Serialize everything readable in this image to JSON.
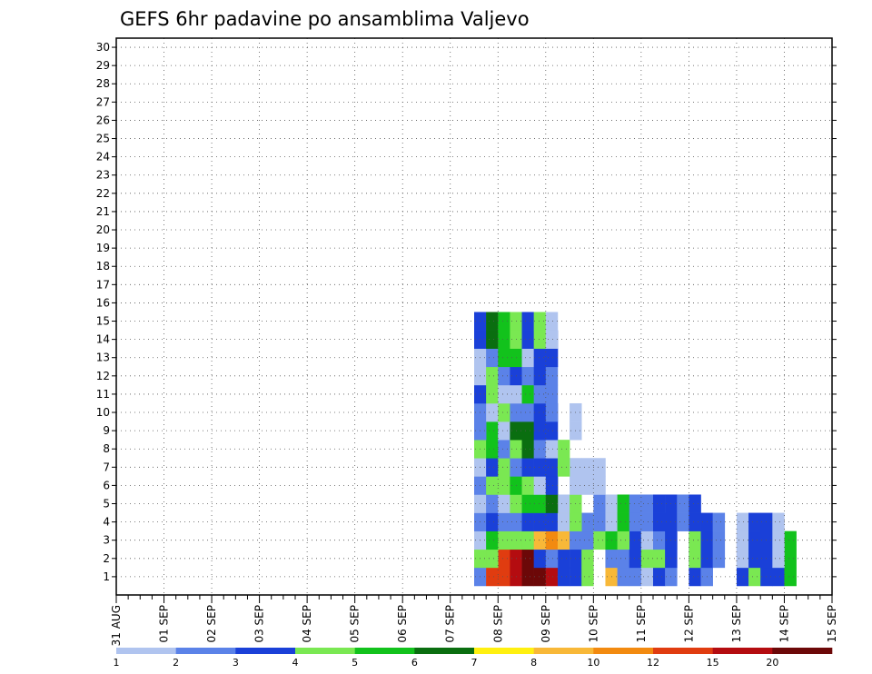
{
  "chart_data": {
    "type": "heatmap",
    "title": "GEFS 6hr padavine po ansamblima Valjevo",
    "y_ticks": [
      "1",
      "2",
      "3",
      "4",
      "5",
      "6",
      "7",
      "8",
      "9",
      "10",
      "11",
      "12",
      "13",
      "14",
      "15",
      "16",
      "17",
      "18",
      "19",
      "20",
      "21",
      "22",
      "23",
      "24",
      "25",
      "26",
      "27",
      "28",
      "29",
      "30"
    ],
    "x_ticks": [
      "31 AUG",
      "01 SEP",
      "02 SEP",
      "03 SEP",
      "04 SEP",
      "05 SEP",
      "06 SEP",
      "07 SEP",
      "08 SEP",
      "09 SEP",
      "10 SEP",
      "11 SEP",
      "12 SEP",
      "13 SEP",
      "14 SEP",
      "15 SEP"
    ],
    "x_range": [
      "31 AUG 00Z",
      "15 SEP 00Z"
    ],
    "y_range": [
      0,
      30
    ],
    "time_step_hours": 6,
    "grid": true,
    "colorbar": {
      "labels": [
        "1",
        "2",
        "3",
        "4",
        "5",
        "6",
        "7",
        "8",
        "10",
        "12",
        "15",
        "20"
      ],
      "colors": [
        "#b0c4ef",
        "#5b82e8",
        "#1a40d8",
        "#7ae852",
        "#12c21c",
        "#0a6e10",
        "#fff010",
        "#f8b838",
        "#f28a10",
        "#e03c10",
        "#b40c10",
        "#6c0808"
      ]
    },
    "cells": [
      [
        1,
        3,
        30,
        1
      ],
      [
        1,
        3,
        31,
        9
      ],
      [
        1,
        3,
        32,
        9
      ],
      [
        1,
        3,
        33,
        10
      ],
      [
        1,
        3,
        34,
        11
      ],
      [
        1,
        3,
        35,
        11
      ],
      [
        1,
        3,
        36,
        10
      ],
      [
        1,
        3,
        37,
        2
      ],
      [
        1,
        3,
        38,
        2
      ],
      [
        1,
        3,
        39,
        3
      ],
      [
        1,
        3,
        41,
        7
      ],
      [
        1,
        3,
        42,
        1
      ],
      [
        1,
        3,
        43,
        1
      ],
      [
        1,
        3,
        44,
        0
      ],
      [
        1,
        3,
        45,
        2
      ],
      [
        1,
        3,
        46,
        1
      ],
      [
        1,
        3,
        48,
        2
      ],
      [
        1,
        3,
        49,
        1
      ],
      [
        1,
        3,
        52,
        2
      ],
      [
        1,
        3,
        53,
        3
      ],
      [
        1,
        3,
        54,
        2
      ],
      [
        1,
        3,
        55,
        2
      ],
      [
        1,
        3,
        56,
        4
      ],
      [
        2,
        3,
        30,
        3
      ],
      [
        2,
        3,
        31,
        3
      ],
      [
        2,
        3,
        35,
        2
      ],
      [
        2,
        3,
        36,
        1
      ],
      [
        2,
        3,
        41,
        1
      ],
      [
        2,
        3,
        43,
        2
      ],
      [
        2,
        3,
        44,
        3
      ],
      [
        2,
        3,
        45,
        3
      ],
      [
        2,
        3,
        46,
        2
      ],
      [
        2,
        3,
        48,
        3
      ],
      [
        2,
        3,
        49,
        2
      ],
      [
        2,
        3,
        50,
        1
      ],
      [
        2,
        3,
        52,
        0
      ],
      [
        2,
        3,
        53,
        2
      ],
      [
        2,
        3,
        54,
        2
      ],
      [
        2,
        3,
        55,
        0
      ],
      [
        3,
        2,
        30,
        0
      ],
      [
        3,
        2,
        31,
        4
      ],
      [
        3,
        2,
        32,
        3
      ],
      [
        3,
        2,
        33,
        3
      ],
      [
        3,
        2,
        34,
        3
      ],
      [
        3,
        2,
        35,
        7
      ],
      [
        3,
        2,
        36,
        8
      ],
      [
        3,
        2,
        37,
        7
      ],
      [
        3,
        2,
        38,
        1
      ],
      [
        3,
        2,
        39,
        1
      ],
      [
        3,
        2,
        40,
        3
      ],
      [
        3,
        2,
        41,
        4
      ],
      [
        3,
        2,
        42,
        3
      ],
      [
        3,
        2,
        44,
        0
      ],
      [
        3,
        2,
        45,
        1
      ],
      [
        3,
        2,
        46,
        2
      ],
      [
        4,
        2,
        30,
        1
      ],
      [
        4,
        2,
        31,
        2
      ],
      [
        4,
        2,
        32,
        1
      ],
      [
        4,
        2,
        33,
        1
      ],
      [
        4,
        2,
        34,
        2
      ],
      [
        4,
        2,
        35,
        2
      ],
      [
        4,
        2,
        36,
        2
      ],
      [
        4,
        2,
        37,
        0
      ],
      [
        4,
        2,
        38,
        3
      ],
      [
        4,
        2,
        40,
        1
      ],
      [
        4,
        2,
        41,
        0
      ],
      [
        4,
        2,
        42,
        4
      ],
      [
        4,
        2,
        43,
        1
      ],
      [
        4,
        2,
        44,
        1
      ],
      [
        4,
        2,
        45,
        2
      ],
      [
        4,
        2,
        46,
        2
      ],
      [
        4,
        2,
        47,
        1
      ],
      [
        4,
        2,
        48,
        2
      ],
      [
        5,
        2,
        30,
        0
      ],
      [
        5,
        2,
        31,
        1
      ],
      [
        5,
        2,
        32,
        0
      ],
      [
        5,
        2,
        33,
        3
      ],
      [
        5,
        2,
        34,
        4
      ],
      [
        5,
        2,
        35,
        4
      ],
      [
        5,
        2,
        36,
        5
      ],
      [
        6,
        2,
        30,
        1
      ],
      [
        6,
        2,
        31,
        3
      ],
      [
        6,
        2,
        32,
        3
      ],
      [
        6,
        2,
        33,
        4
      ],
      [
        6,
        2,
        34,
        3
      ],
      [
        6,
        2,
        35,
        0
      ],
      [
        6,
        2,
        36,
        2
      ],
      [
        6,
        2,
        38,
        0
      ],
      [
        6,
        2,
        39,
        0
      ],
      [
        6,
        2,
        40,
        0
      ],
      [
        7,
        2,
        30,
        0
      ],
      [
        7,
        2,
        31,
        2
      ],
      [
        7,
        2,
        32,
        3
      ],
      [
        7,
        2,
        33,
        1
      ],
      [
        7,
        2,
        34,
        2
      ],
      [
        7,
        2,
        35,
        2
      ],
      [
        7,
        2,
        36,
        2
      ],
      [
        7,
        2,
        37,
        3
      ],
      [
        8,
        2,
        30,
        3
      ],
      [
        8,
        2,
        31,
        4
      ],
      [
        8,
        2,
        32,
        1
      ],
      [
        8,
        2,
        33,
        3
      ],
      [
        8,
        2,
        34,
        5
      ],
      [
        8,
        2,
        35,
        1
      ],
      [
        8,
        2,
        36,
        0
      ],
      [
        9,
        2,
        30,
        1
      ],
      [
        9,
        2,
        32,
        0
      ],
      [
        9,
        2,
        33,
        5
      ],
      [
        9,
        2,
        34,
        5
      ],
      [
        9,
        2,
        35,
        2
      ],
      [
        9,
        2,
        36,
        2
      ],
      [
        9,
        2,
        38,
        0
      ],
      [
        10,
        2,
        30,
        1
      ],
      [
        10,
        2,
        31,
        0
      ],
      [
        10,
        2,
        32,
        3
      ],
      [
        10,
        2,
        33,
        1
      ],
      [
        10,
        2,
        34,
        1
      ],
      [
        10,
        2,
        35,
        2
      ],
      [
        10,
        2,
        36,
        1
      ],
      [
        11,
        2,
        30,
        2
      ],
      [
        11,
        2,
        31,
        3
      ],
      [
        11,
        2,
        32,
        0
      ],
      [
        11,
        2,
        33,
        0
      ],
      [
        11,
        2,
        34,
        4
      ],
      [
        11,
        2,
        35,
        1
      ],
      [
        12,
        2,
        30,
        0
      ],
      [
        12,
        2,
        31,
        3
      ],
      [
        12,
        2,
        32,
        1
      ],
      [
        12,
        2,
        33,
        2
      ],
      [
        12,
        2,
        34,
        1
      ],
      [
        12,
        2,
        35,
        2
      ],
      [
        12,
        2,
        36,
        1
      ],
      [
        13,
        2,
        30,
        0
      ],
      [
        13,
        2,
        31,
        1
      ],
      [
        13,
        2,
        32,
        4
      ],
      [
        13,
        2,
        33,
        4
      ],
      [
        13,
        2,
        34,
        0
      ],
      [
        13,
        2,
        35,
        2
      ],
      [
        13,
        2,
        36,
        2
      ],
      [
        14,
        2,
        30,
        2
      ],
      [
        14,
        2,
        31,
        5
      ],
      [
        14,
        2,
        32,
        4
      ],
      [
        14,
        2,
        33,
        3
      ],
      [
        14,
        2,
        34,
        2
      ],
      [
        14,
        2,
        35,
        3
      ],
      [
        14,
        2,
        36,
        0
      ]
    ]
  }
}
